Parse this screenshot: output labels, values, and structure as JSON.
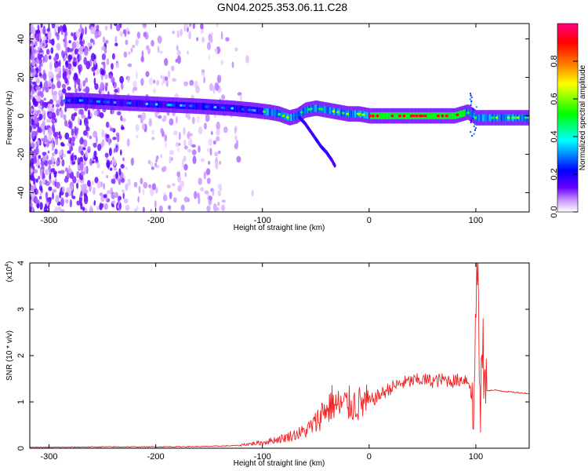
{
  "figure": {
    "title": "GN04.2025.353.06.11.C28"
  },
  "chart_data": [
    {
      "type": "heatmap",
      "xlabel": "Height of straight line (km)",
      "ylabel": "Frequency (Hz)",
      "xlim": [
        -318,
        150
      ],
      "ylim": [
        -50,
        48
      ],
      "xticks": [
        -300,
        -200,
        -100,
        0,
        100
      ],
      "yticks": [
        -40,
        -20,
        0,
        20,
        40
      ],
      "colorbar": {
        "label": "Normalized spectral amplitude",
        "range": [
          0,
          1
        ],
        "ticks": [
          "0.0",
          "0.2",
          "0.4",
          "0.6",
          "0.8"
        ],
        "colors": [
          "#ffffff",
          "#cc99ff",
          "#6600ff",
          "#0000ff",
          "#00ffff",
          "#00ff00",
          "#ffff00",
          "#ff8000",
          "#ff0000",
          "#ff0080"
        ]
      },
      "ridge_frequency": {
        "x": [
          -270,
          -240,
          -200,
          -160,
          -130,
          -110,
          -95,
          -85,
          -75,
          -68,
          -60,
          -50,
          -40,
          -30,
          -20,
          -10,
          0,
          20,
          50,
          80,
          92,
          100,
          150
        ],
        "y": [
          8,
          7,
          6,
          5,
          4,
          3,
          2,
          1,
          -1,
          0,
          3,
          4,
          3,
          2,
          1,
          1,
          0,
          0,
          0,
          0,
          2,
          -1,
          -1
        ]
      },
      "branch_frequency": {
        "x": [
          -65,
          -60,
          -55,
          -50,
          -45,
          -40,
          -35,
          -32
        ],
        "y": [
          -1,
          -4,
          -8,
          -12,
          -16,
          -19,
          -23,
          -26
        ]
      }
    },
    {
      "type": "line",
      "xlabel": "Height of straight line (km)",
      "ylabel": "SNR (10 * v/v)",
      "multiplier_base": "(x10",
      "multiplier_exp": "4",
      "multiplier_close": ")",
      "xlim": [
        -318,
        150
      ],
      "ylim": [
        0,
        4
      ],
      "xticks": [
        -300,
        -200,
        -100,
        0,
        100
      ],
      "yticks": [
        0,
        1,
        2,
        3,
        4
      ],
      "color": "#ee2222",
      "series": [
        {
          "x": [
            -318,
            -300,
            -250,
            -200,
            -150,
            -120,
            -100,
            -80,
            -60,
            -50,
            -40,
            -35,
            -30,
            -20,
            -10,
            0,
            10,
            20,
            30,
            40,
            50,
            60,
            70,
            80,
            90,
            95,
            98,
            100,
            102,
            104,
            106,
            108,
            110,
            120,
            130,
            140,
            150
          ],
          "y": [
            0.02,
            0.02,
            0.03,
            0.03,
            0.04,
            0.06,
            0.1,
            0.18,
            0.3,
            0.45,
            0.75,
            1.0,
            0.9,
            0.95,
            0.95,
            1.0,
            1.15,
            1.3,
            1.4,
            1.45,
            1.48,
            1.45,
            1.48,
            1.45,
            1.5,
            1.4,
            0.4,
            3.4,
            4.0,
            0.2,
            2.5,
            1.3,
            1.25,
            1.25,
            1.22,
            1.2,
            1.18
          ]
        }
      ]
    }
  ]
}
